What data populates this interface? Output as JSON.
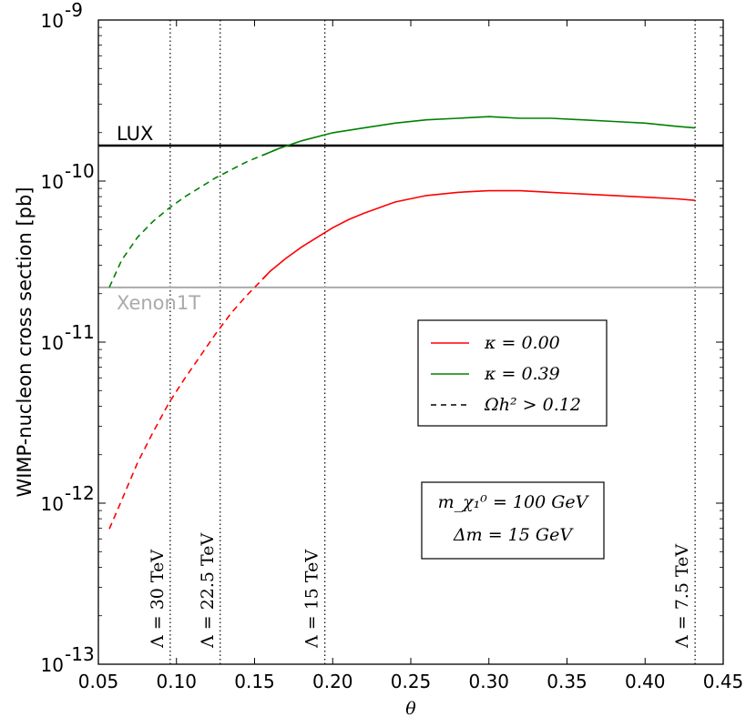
{
  "chart_data": {
    "type": "line",
    "xlabel": "θ",
    "ylabel": "WIMP-nucleon cross section [pb]",
    "xlim": [
      0.05,
      0.45
    ],
    "ylim_log10": [
      -13,
      -9
    ],
    "yscale": "log",
    "x_ticks": [
      "0.05",
      "0.10",
      "0.15",
      "0.20",
      "0.25",
      "0.30",
      "0.35",
      "0.40",
      "0.45"
    ],
    "x_tick_values": [
      0.05,
      0.1,
      0.15,
      0.2,
      0.25,
      0.3,
      0.35,
      0.4,
      0.45
    ],
    "y_ticks": [
      {
        "base": "10",
        "exp": "-13",
        "value_log10": -13
      },
      {
        "base": "10",
        "exp": "-12",
        "value_log10": -12
      },
      {
        "base": "10",
        "exp": "-11",
        "value_log10": -11
      },
      {
        "base": "10",
        "exp": "-10",
        "value_log10": -10
      },
      {
        "base": "10",
        "exp": "-9",
        "value_log10": -9
      }
    ],
    "series": [
      {
        "name": "κ = 0.00",
        "color": "#ff0000",
        "x": [
          0.057,
          0.065,
          0.075,
          0.085,
          0.095,
          0.105,
          0.115,
          0.125,
          0.135,
          0.145,
          0.155,
          0.16,
          0.17,
          0.18,
          0.19,
          0.2,
          0.21,
          0.22,
          0.24,
          0.26,
          0.28,
          0.3,
          0.32,
          0.34,
          0.36,
          0.38,
          0.4,
          0.42,
          0.432
        ],
        "log10_y": [
          -12.16,
          -11.98,
          -11.75,
          -11.56,
          -11.38,
          -11.23,
          -11.09,
          -10.95,
          -10.82,
          -10.71,
          -10.61,
          -10.56,
          -10.48,
          -10.41,
          -10.35,
          -10.29,
          -10.24,
          -10.2,
          -10.13,
          -10.09,
          -10.07,
          -10.06,
          -10.06,
          -10.07,
          -10.08,
          -10.09,
          -10.1,
          -10.11,
          -10.12
        ],
        "dashed_below_x": 0.163
      },
      {
        "name": "κ = 0.39",
        "color": "#008000",
        "x": [
          0.057,
          0.065,
          0.075,
          0.085,
          0.095,
          0.105,
          0.115,
          0.125,
          0.135,
          0.145,
          0.155,
          0.165,
          0.18,
          0.2,
          0.22,
          0.24,
          0.26,
          0.28,
          0.3,
          0.32,
          0.34,
          0.36,
          0.38,
          0.4,
          0.42,
          0.432
        ],
        "log10_y": [
          -10.66,
          -10.49,
          -10.35,
          -10.25,
          -10.17,
          -10.1,
          -10.04,
          -9.98,
          -9.93,
          -9.88,
          -9.84,
          -9.8,
          -9.75,
          -9.7,
          -9.67,
          -9.64,
          -9.62,
          -9.61,
          -9.6,
          -9.61,
          -9.61,
          -9.62,
          -9.63,
          -9.64,
          -9.66,
          -9.67
        ],
        "dashed_below_x": 0.165
      }
    ],
    "hlines": [
      {
        "name": "LUX",
        "log10_y": -9.78,
        "color": "#000000",
        "label_color": "#000000"
      },
      {
        "name": "Xenon1T",
        "log10_y": -10.66,
        "color": "#aaaaaa",
        "label_color": "#aaaaaa"
      }
    ],
    "vlines": [
      {
        "label": "Λ = 30 TeV",
        "x": 0.096
      },
      {
        "label": "Λ = 22.5 TeV",
        "x": 0.128
      },
      {
        "label": "Λ = 15 TeV",
        "x": 0.195
      },
      {
        "label": "Λ = 7.5 TeV",
        "x": 0.432
      }
    ],
    "legend": {
      "placement": "center-right",
      "entries": [
        {
          "label": "κ = 0.00",
          "color": "#ff0000",
          "style": "solid"
        },
        {
          "label": "κ = 0.39",
          "color": "#008000",
          "style": "solid"
        },
        {
          "label": "Ωh² > 0.12",
          "color": "#000000",
          "style": "dashed"
        }
      ]
    },
    "info_box": {
      "placement": "lower-right",
      "lines": [
        "m_χ₁⁰ = 100 GeV",
        "Δm = 15 GeV"
      ]
    }
  }
}
